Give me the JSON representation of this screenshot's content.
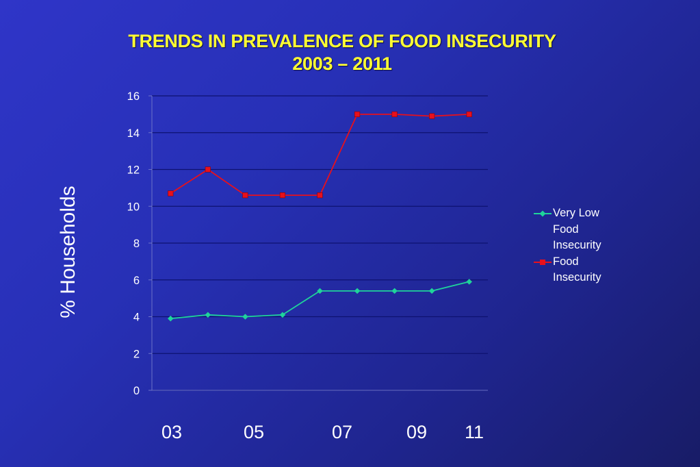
{
  "title_line1": "TRENDS IN PREVALENCE OF FOOD INSECURITY",
  "title_line2": "2003 – 2011",
  "ylabel": "% Households",
  "x_category_labels": [
    "03",
    "05",
    "07",
    "09",
    "11"
  ],
  "colors": {
    "very_low": "#1fd49a",
    "food_insecurity": "#e8101c",
    "grid": "#0e1270",
    "axis": "#6c72c8"
  },
  "chart_data": {
    "type": "line",
    "x": [
      1,
      2,
      3,
      4,
      5,
      6,
      7,
      8,
      9
    ],
    "ylim": [
      0,
      16
    ],
    "yticks": [
      0,
      2,
      4,
      6,
      8,
      10,
      12,
      14,
      16
    ],
    "grid": true,
    "legend_position": "right",
    "series": [
      {
        "name": "Very Low Food Insecurity",
        "marker": "diamond",
        "values": [
          3.9,
          4.1,
          4.0,
          4.1,
          5.4,
          5.4,
          5.4,
          5.4,
          5.9
        ]
      },
      {
        "name": "Food Insecurity",
        "marker": "square",
        "values": [
          10.7,
          12.0,
          10.6,
          10.6,
          10.6,
          15.0,
          15.0,
          14.9,
          15.0
        ]
      }
    ]
  }
}
